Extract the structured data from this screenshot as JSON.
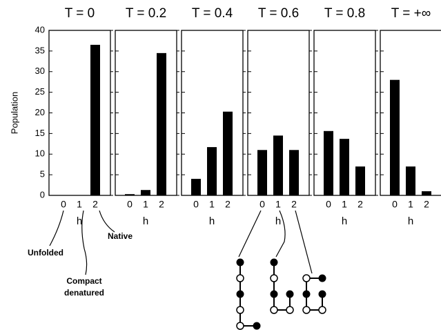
{
  "chart_data": [
    {
      "type": "bar",
      "title": "T = 0",
      "categories": [
        "0",
        "1",
        "2"
      ],
      "values": [
        0,
        0,
        36.5
      ],
      "x_label": "h",
      "y_label": "Population",
      "ylim": [
        0,
        40
      ],
      "yticks": [
        0,
        5,
        10,
        15,
        20,
        25,
        30,
        35,
        40
      ],
      "color": "#000000"
    },
    {
      "type": "bar",
      "title": "T = 0.2",
      "categories": [
        "0",
        "1",
        "2"
      ],
      "values": [
        0.3,
        1.3,
        34.5
      ],
      "x_label": "h",
      "ylim": [
        0,
        40
      ],
      "color": "#000000"
    },
    {
      "type": "bar",
      "title": "T = 0.4",
      "categories": [
        "0",
        "1",
        "2"
      ],
      "values": [
        4,
        11.7,
        20.3
      ],
      "x_label": "h",
      "ylim": [
        0,
        40
      ],
      "color": "#000000"
    },
    {
      "type": "bar",
      "title": "T = 0.6",
      "categories": [
        "0",
        "1",
        "2"
      ],
      "values": [
        11,
        14.5,
        11
      ],
      "x_label": "h",
      "ylim": [
        0,
        40
      ],
      "color": "#000000"
    },
    {
      "type": "bar",
      "title": "T = 0.8",
      "categories": [
        "0",
        "1",
        "2"
      ],
      "values": [
        15.6,
        13.7,
        7
      ],
      "x_label": "h",
      "ylim": [
        0,
        40
      ],
      "color": "#000000"
    },
    {
      "type": "bar",
      "title": "T = +∞",
      "categories": [
        "0",
        "1",
        "2"
      ],
      "values": [
        28,
        7,
        1
      ],
      "x_label": "h",
      "ylim": [
        0,
        40
      ],
      "color": "#000000"
    }
  ],
  "annotations": [
    "Unfolded",
    "Compact",
    "denatured",
    "Native"
  ]
}
